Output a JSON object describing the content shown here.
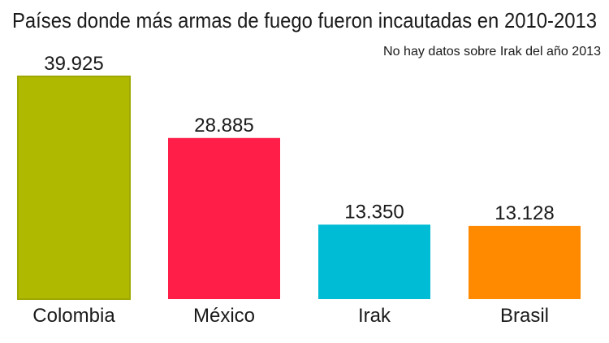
{
  "chart_data": {
    "type": "bar",
    "title": "Países donde más armas de fuego fueron incautadas en 2010-2013",
    "subtitle": "No hay datos sobre Irak del año 2013",
    "categories": [
      "Colombia",
      "México",
      "Irak",
      "Brasil"
    ],
    "values": [
      39925,
      28885,
      13350,
      13128
    ],
    "value_labels": [
      "39.925",
      "28.885",
      "13.350",
      "13.128"
    ],
    "colors": [
      "#aeb900",
      "#fe1e48",
      "#00bcd4",
      "#ff8a00"
    ],
    "xlabel": "",
    "ylabel": "",
    "ylim": [
      0,
      39925
    ],
    "grid": false,
    "legend": "none"
  }
}
